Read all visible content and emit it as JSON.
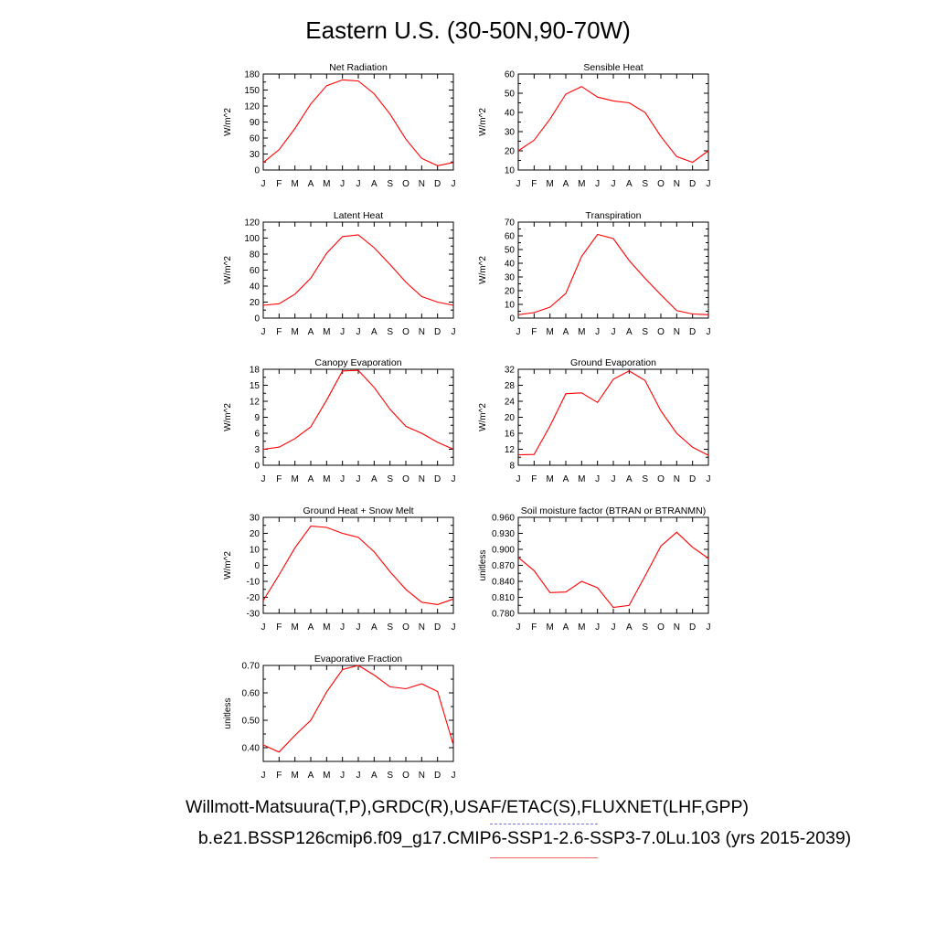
{
  "title": "Eastern U.S. (30-50N,90-70W)",
  "footer": {
    "obs_line": "Willmott-Matsuura(T,P),GRDC(R),USAF/ETAC(S),FLUXNET(LHF,GPP)",
    "case_line": "b.e21.BSSP126cmip6.f09_g17.CMIP6-SSP1-2.6-SSP3-7.0Lu.103 (yrs 2015-2039)"
  },
  "colors": {
    "series": "#ff0000",
    "axis": "#000000",
    "obs_legend": "#7777dd",
    "model_legend": "#ee6666"
  },
  "chart_data": [
    {
      "type": "line",
      "title": "Net Radiation",
      "ylabel": "W/m^2",
      "categories": [
        "J",
        "F",
        "M",
        "A",
        "M",
        "J",
        "J",
        "A",
        "S",
        "O",
        "N",
        "D",
        "J"
      ],
      "ylim": [
        0,
        180
      ],
      "yticks": [
        0,
        30,
        60,
        90,
        120,
        150,
        180
      ],
      "ytick_labels": [
        "0",
        "30",
        "60",
        "90",
        "120",
        "150",
        "180"
      ],
      "values": [
        14,
        38,
        78,
        124,
        158,
        169,
        167,
        143,
        105,
        58,
        22,
        8,
        14
      ]
    },
    {
      "type": "line",
      "title": "Sensible Heat",
      "ylabel": "W/m^2",
      "categories": [
        "J",
        "F",
        "M",
        "A",
        "M",
        "J",
        "J",
        "A",
        "S",
        "O",
        "N",
        "D",
        "J"
      ],
      "ylim": [
        10,
        60
      ],
      "yticks": [
        10,
        20,
        30,
        40,
        50,
        60
      ],
      "ytick_labels": [
        "10",
        "20",
        "30",
        "40",
        "50",
        "60"
      ],
      "values": [
        20,
        25.5,
        36.5,
        49.5,
        53.5,
        48,
        46,
        45,
        40,
        27.5,
        17,
        14,
        20
      ]
    },
    {
      "type": "line",
      "title": "Latent Heat",
      "ylabel": "W/m^2",
      "categories": [
        "J",
        "F",
        "M",
        "A",
        "M",
        "J",
        "J",
        "A",
        "S",
        "O",
        "N",
        "D",
        "J"
      ],
      "ylim": [
        0,
        120
      ],
      "yticks": [
        0,
        20,
        40,
        60,
        80,
        100,
        120
      ],
      "ytick_labels": [
        "0",
        "20",
        "40",
        "60",
        "80",
        "100",
        "120"
      ],
      "values": [
        16,
        18,
        30,
        50,
        81,
        102,
        104,
        88,
        67,
        45,
        27,
        20,
        16
      ]
    },
    {
      "type": "line",
      "title": "Transpiration",
      "ylabel": "W/m^2",
      "categories": [
        "J",
        "F",
        "M",
        "A",
        "M",
        "J",
        "J",
        "A",
        "S",
        "O",
        "N",
        "D",
        "J"
      ],
      "ylim": [
        0,
        70
      ],
      "yticks": [
        0,
        10,
        20,
        30,
        40,
        50,
        60,
        70
      ],
      "ytick_labels": [
        "0",
        "10",
        "20",
        "30",
        "40",
        "50",
        "60",
        "70"
      ],
      "values": [
        2.5,
        4,
        8,
        18,
        45,
        61,
        58,
        42,
        29,
        17,
        5.5,
        3,
        2.5
      ]
    },
    {
      "type": "line",
      "title": "Canopy Evaporation",
      "ylabel": "W/m^2",
      "categories": [
        "J",
        "F",
        "M",
        "A",
        "M",
        "J",
        "J",
        "A",
        "S",
        "O",
        "N",
        "D",
        "J"
      ],
      "ylim": [
        0,
        18
      ],
      "yticks": [
        0,
        3,
        6,
        9,
        12,
        15,
        18
      ],
      "ytick_labels": [
        "0",
        "3",
        "6",
        "9",
        "12",
        "15",
        "18"
      ],
      "values": [
        3,
        3.4,
        5,
        7.2,
        12.2,
        17.7,
        17.8,
        14.6,
        10.5,
        7.3,
        6,
        4.3,
        3
      ]
    },
    {
      "type": "line",
      "title": "Ground Evaporation",
      "ylabel": "W/m^2",
      "categories": [
        "J",
        "F",
        "M",
        "A",
        "M",
        "J",
        "J",
        "A",
        "S",
        "O",
        "N",
        "D",
        "J"
      ],
      "ylim": [
        8,
        32
      ],
      "yticks": [
        8,
        12,
        16,
        20,
        24,
        28,
        32
      ],
      "ytick_labels": [
        "8",
        "12",
        "16",
        "20",
        "24",
        "28",
        "32"
      ],
      "values": [
        10.6,
        10.7,
        17.8,
        25.9,
        26.1,
        23.7,
        29.5,
        31.6,
        29.2,
        21.6,
        16,
        12.5,
        10.5
      ]
    },
    {
      "type": "line",
      "title": "Ground Heat + Snow Melt",
      "ylabel": "W/m^2",
      "categories": [
        "J",
        "F",
        "M",
        "A",
        "M",
        "J",
        "J",
        "A",
        "S",
        "O",
        "N",
        "D",
        "J"
      ],
      "ylim": [
        -30,
        30
      ],
      "yticks": [
        -30,
        -20,
        -10,
        0,
        10,
        20,
        30
      ],
      "ytick_labels": [
        "-30",
        "-20",
        "-10",
        "0",
        "10",
        "20",
        "30"
      ],
      "values": [
        -22,
        -6,
        11,
        24.5,
        23.7,
        20,
        17.5,
        8.5,
        -4,
        -15,
        -23,
        -24.5,
        -21
      ]
    },
    {
      "type": "line",
      "title": "Soil moisture factor (BTRAN or BTRANMN)",
      "ylabel": "unitless",
      "categories": [
        "J",
        "F",
        "M",
        "A",
        "M",
        "J",
        "J",
        "A",
        "S",
        "O",
        "N",
        "D",
        "J"
      ],
      "ylim": [
        0.78,
        0.96
      ],
      "yticks": [
        0.78,
        0.81,
        0.84,
        0.87,
        0.9,
        0.93,
        0.96
      ],
      "ytick_labels": [
        "0.780",
        "0.810",
        "0.840",
        "0.870",
        "0.900",
        "0.930",
        "0.960"
      ],
      "values": [
        0.885,
        0.86,
        0.819,
        0.82,
        0.84,
        0.828,
        0.791,
        0.795,
        0.85,
        0.906,
        0.932,
        0.904,
        0.883
      ]
    },
    {
      "type": "line",
      "title": "Evaporative Fraction",
      "ylabel": "unitless",
      "categories": [
        "J",
        "F",
        "M",
        "A",
        "M",
        "J",
        "J",
        "A",
        "S",
        "O",
        "N",
        "D",
        "J"
      ],
      "ylim": [
        0.35,
        0.7
      ],
      "yticks": [
        0.4,
        0.5,
        0.6,
        0.7
      ],
      "ytick_labels": [
        "0.40",
        "0.50",
        "0.60",
        "0.70"
      ],
      "values": [
        0.41,
        0.384,
        0.445,
        0.5,
        0.603,
        0.685,
        0.7,
        0.665,
        0.622,
        0.615,
        0.633,
        0.605,
        0.41
      ]
    }
  ]
}
